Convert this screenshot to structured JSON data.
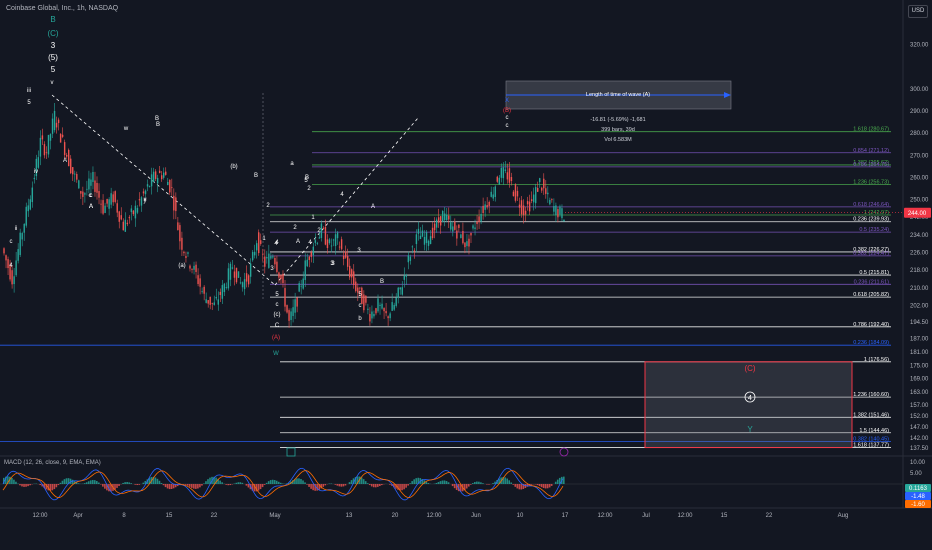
{
  "header": {
    "title": "Coinbase Global, Inc., 1h, NASDAQ",
    "currency": "USD"
  },
  "colors": {
    "background": "#131722",
    "up": "#26a69a",
    "down": "#ef5350",
    "fib_white": "#ffffff",
    "fib_green": "#4caf50",
    "fib_purple": "#7e57c2",
    "fib_blue": "#2962ff",
    "price_tag": "#f23645",
    "macd_line": "#2962ff",
    "signal_line": "#ff6d00"
  },
  "chart_data": {
    "type": "candlestick",
    "xlabel": "",
    "ylabel": "",
    "ylim": [
      133.5,
      333
    ],
    "y_ticks": [
      320.0,
      300.0,
      290.0,
      280.0,
      270.0,
      260.0,
      250.0,
      242.0,
      234.0,
      226.0,
      218.0,
      210.0,
      202.0,
      194.5,
      187.0,
      181.0,
      175.0,
      169.0,
      163.0,
      157.0,
      152.0,
      147.0,
      142.0,
      137.5
    ],
    "x_ticks": [
      "12:00",
      "Apr",
      "8",
      "15",
      "22",
      "May",
      "13",
      "20",
      "12:00",
      "Jun",
      "10",
      "17",
      "12:00",
      "Jul",
      "12:00",
      "15",
      "22",
      "Aug"
    ],
    "price_path": [
      [
        0,
        228
      ],
      [
        5,
        214
      ],
      [
        10,
        236
      ],
      [
        15,
        256
      ],
      [
        19,
        276
      ],
      [
        22,
        272
      ],
      [
        26,
        288
      ],
      [
        30,
        276
      ],
      [
        35,
        262
      ],
      [
        40,
        252
      ],
      [
        45,
        259
      ],
      [
        50,
        246
      ],
      [
        55,
        251
      ],
      [
        60,
        238
      ],
      [
        65,
        244
      ],
      [
        70,
        252
      ],
      [
        75,
        260
      ],
      [
        80,
        262
      ],
      [
        84,
        254
      ],
      [
        88,
        232
      ],
      [
        92,
        223
      ],
      [
        96,
        216
      ],
      [
        100,
        206
      ],
      [
        105,
        202
      ],
      [
        110,
        211
      ],
      [
        114,
        220
      ],
      [
        118,
        212
      ],
      [
        122,
        215
      ],
      [
        126,
        232
      ],
      [
        130,
        221
      ],
      [
        134,
        226
      ],
      [
        138,
        214
      ],
      [
        142,
        194
      ],
      [
        146,
        205
      ],
      [
        150,
        220
      ],
      [
        154,
        230
      ],
      [
        158,
        236
      ],
      [
        162,
        229
      ],
      [
        166,
        232
      ],
      [
        170,
        222
      ],
      [
        174,
        212
      ],
      [
        178,
        205
      ],
      [
        182,
        198
      ],
      [
        186,
        202
      ],
      [
        190,
        197
      ],
      [
        194,
        202
      ],
      [
        198,
        212
      ],
      [
        202,
        226
      ],
      [
        206,
        234
      ],
      [
        210,
        232
      ],
      [
        214,
        237
      ],
      [
        218,
        243
      ],
      [
        222,
        238
      ],
      [
        226,
        235
      ],
      [
        230,
        229
      ],
      [
        234,
        239
      ],
      [
        238,
        246
      ],
      [
        242,
        252
      ],
      [
        246,
        262
      ],
      [
        250,
        261
      ],
      [
        254,
        252
      ],
      [
        258,
        245
      ],
      [
        262,
        249
      ],
      [
        266,
        258
      ],
      [
        270,
        250
      ],
      [
        274,
        245
      ],
      [
        278,
        243
      ]
    ],
    "last_price": "244.00",
    "fib_levels": [
      {
        "label": "1.618 (280.67)",
        "value": 280.67,
        "color": "#4caf50"
      },
      {
        "label": "0.854 (271.12)",
        "value": 271.12,
        "color": "#7e57c2"
      },
      {
        "label": "1.382 (265.62)",
        "value": 265.62,
        "color": "#4caf50"
      },
      {
        "label": "0.786 (264.75)",
        "value": 264.75,
        "color": "#7e57c2"
      },
      {
        "label": "1.236 (256.73)",
        "value": 256.73,
        "color": "#4caf50"
      },
      {
        "label": "0.618 (246.64)",
        "value": 246.64,
        "color": "#7e57c2"
      },
      {
        "label": "1 (242.97)",
        "value": 242.97,
        "color": "#4caf50"
      },
      {
        "label": "0.236 (239.93)",
        "value": 239.93,
        "color": "#ffffff"
      },
      {
        "label": "0.5 (235.24)",
        "value": 235.24,
        "color": "#7e57c2"
      },
      {
        "label": "0.382 (226.27)",
        "value": 226.27,
        "color": "#ffffff"
      },
      {
        "label": "0.382 (224.47)",
        "value": 224.47,
        "color": "#7e57c2"
      },
      {
        "label": "0.5 (215.81)",
        "value": 215.81,
        "color": "#ffffff"
      },
      {
        "label": "0.236 (211.61)",
        "value": 211.61,
        "color": "#7e57c2"
      },
      {
        "label": "0.618 (205.82)",
        "value": 205.82,
        "color": "#ffffff"
      },
      {
        "label": "0.786 (192.40)",
        "value": 192.4,
        "color": "#ffffff"
      },
      {
        "label": "0.236 (184.09)",
        "value": 184.09,
        "color": "#2962ff"
      },
      {
        "label": "1 (176.56)",
        "value": 176.56,
        "color": "#ffffff"
      },
      {
        "label": "1.236 (160.60)",
        "value": 160.6,
        "color": "#ffffff"
      },
      {
        "label": "1.382 (151.46)",
        "value": 151.46,
        "color": "#ffffff"
      },
      {
        "label": "1.5 (144.46)",
        "value": 144.46,
        "color": "#ffffff"
      },
      {
        "label": "0.382 (140.45)",
        "value": 140.45,
        "color": "#2962ff"
      },
      {
        "label": "1.618 (137.77)",
        "value": 137.77,
        "color": "#ffffff"
      }
    ],
    "annotations": {
      "wave_length_label": "Length of time of wave (A)",
      "measure_change": "-16.81 (-5.69%) -1,681",
      "measure_bars": "399 bars, 39d",
      "measure_vol": "Vol 6.583M",
      "target_box_labels": [
        "(C)",
        "4",
        "Y"
      ],
      "wave_labels": [
        "B",
        "(C)",
        "3",
        "(5)",
        "5",
        "iii",
        "5",
        "v",
        "B",
        "w",
        "B",
        "y",
        "(b)",
        "B",
        "a",
        "X",
        "(B)",
        "c",
        "c",
        "iv",
        "A",
        "x",
        "c",
        "(a)",
        "4",
        "ii",
        "c",
        "A",
        "A",
        "4",
        "A",
        "2",
        "1",
        "3",
        "4",
        "5",
        "c",
        "(c)",
        "C",
        "(A)",
        "W",
        "5",
        "c",
        "b",
        "3",
        "2",
        "B",
        "4",
        "c",
        "A",
        "B",
        "3",
        "2",
        "4",
        "5",
        "1",
        "2",
        "3"
      ]
    },
    "macd": {
      "title": "MACD (12, 26, close, 9, EMA, EMA)",
      "y_ticks": [
        "10.00",
        "5.00",
        "-5.00",
        "-10.00"
      ],
      "values": [
        "0.1163",
        "-1.48",
        "-1.60"
      ]
    }
  }
}
